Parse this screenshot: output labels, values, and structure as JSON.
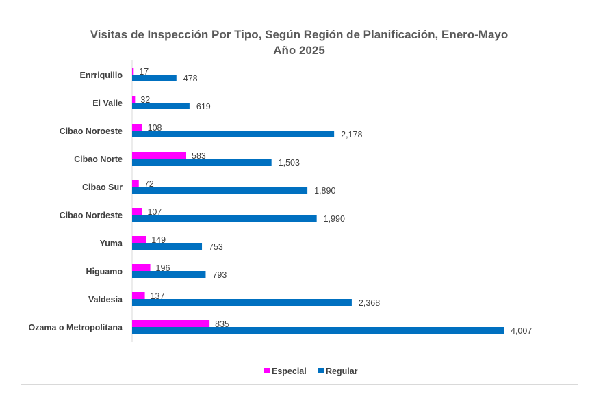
{
  "chart_data": {
    "type": "bar",
    "orientation": "horizontal",
    "title": "Visitas de Inspección Por Tipo, Según Región de Planificación, Enero-Mayo",
    "title_line2": "Año 2025",
    "categories": [
      "Enrriquillo",
      "El Valle",
      "Cibao Noroeste",
      "Cibao Norte",
      "Cibao Sur",
      "Cibao Nordeste",
      "Yuma",
      "Higuamo",
      "Valdesia",
      "Ozama o Metropolitana"
    ],
    "series": [
      {
        "name": "Especial",
        "color": "#ff00ff",
        "values": [
          17,
          32,
          108,
          583,
          72,
          107,
          149,
          196,
          137,
          835
        ],
        "labels": [
          "17",
          "32",
          "108",
          "583",
          "72",
          "107",
          "149",
          "196",
          "137",
          "835"
        ]
      },
      {
        "name": "Regular",
        "color": "#0070c0",
        "values": [
          478,
          619,
          2178,
          1503,
          1890,
          1990,
          753,
          793,
          2368,
          4007
        ],
        "labels": [
          "478",
          "619",
          "2,178",
          "1,503",
          "1,890",
          "1,990",
          "753",
          "793",
          "2,368",
          "4,007"
        ]
      }
    ],
    "xlim": [
      0,
      4007
    ],
    "grid": false,
    "legend": "bottom"
  }
}
